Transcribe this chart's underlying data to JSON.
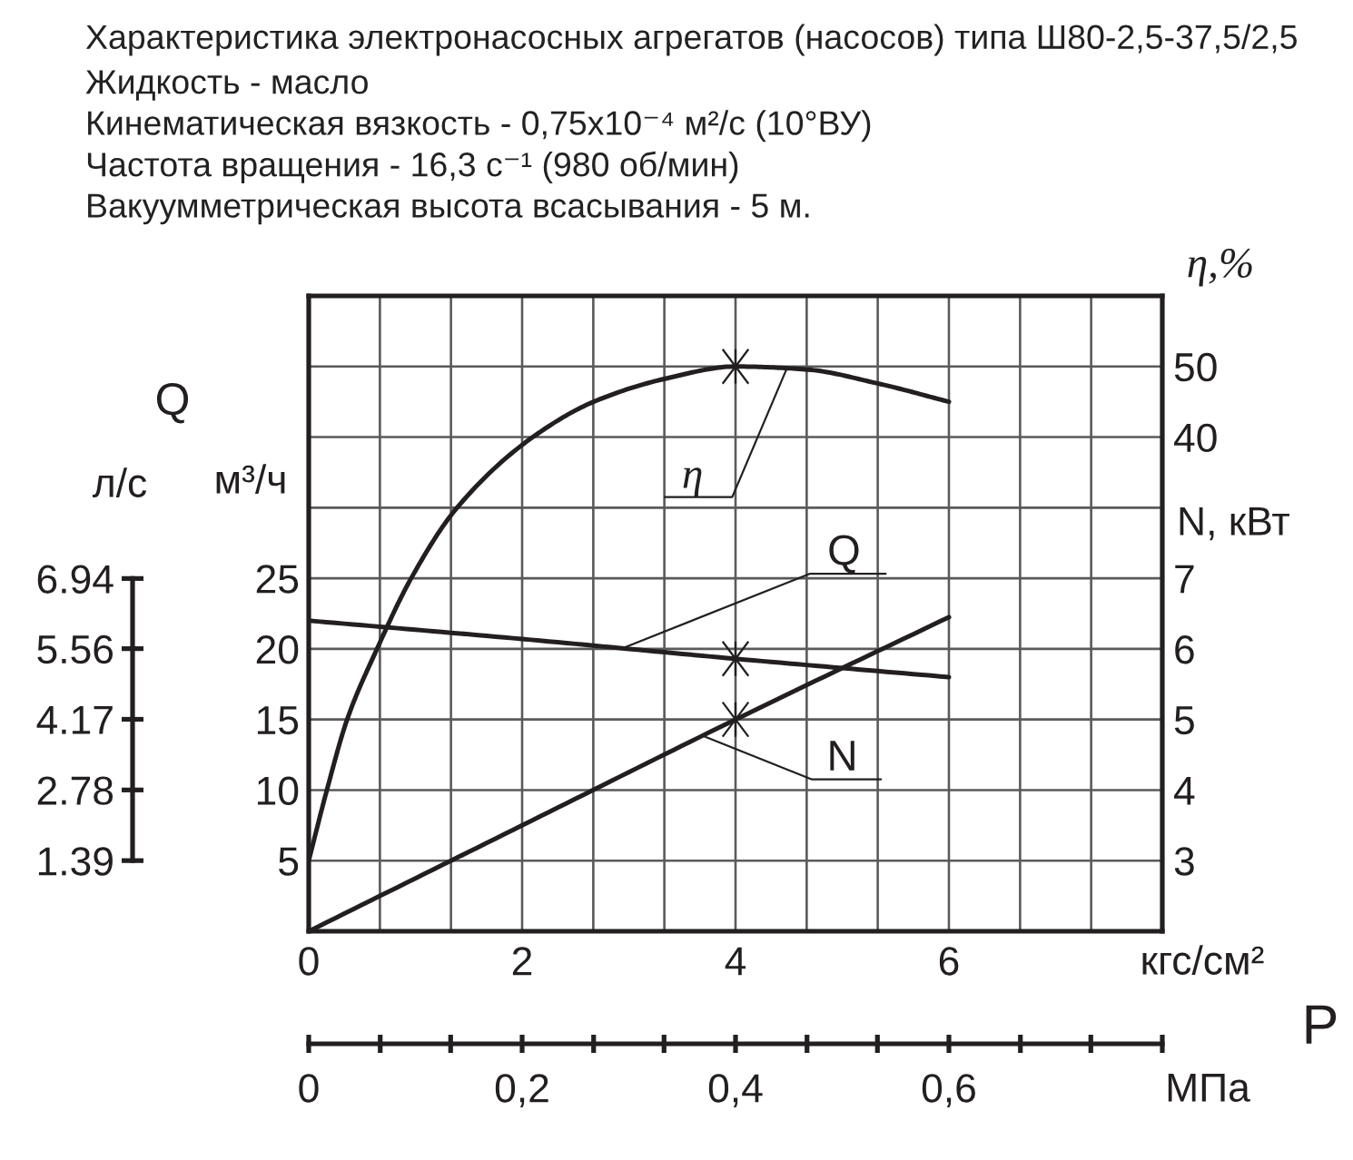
{
  "chart_data": [
    {
      "type": "line",
      "title": "Характеристика электронасосных агрегатов (насосов) типа Ш80-2,5-37,5/2,5",
      "subtitle": "Жидкость - масло\nКинематическая вязкость - 0,75x10⁻⁴ м²/с (10°ВУ)\nЧастота вращения - 16,3 с⁻¹ (980 об/мин)\nВакуумметрическая высота всасывания - 5 м.",
      "xlabel": "кгс/см²",
      "x2label": "МПа",
      "ylabel": "м³/ч",
      "y2label": "л/с",
      "y3label": "N, кВт",
      "annotations": [
        "Q",
        "P"
      ],
      "xlim": [
        0,
        8
      ],
      "xticks": [
        0,
        {
          "value": 0.667,
          "label": null
        },
        {
          "value": 1.333,
          "label": null
        },
        2,
        {
          "value": 2.667,
          "label": null
        },
        {
          "value": 3.333,
          "label": null
        },
        4,
        {
          "value": 4.667,
          "label": null
        },
        {
          "value": 5.333,
          "label": null
        },
        6,
        {
          "value": 6.667,
          "label": null
        },
        {
          "value": 7.333,
          "label": null
        }
      ],
      "x2lim": [
        0,
        0.8
      ],
      "x2ticks": [
        0,
        {
          "value": 0.067,
          "label": null
        },
        {
          "value": 0.133,
          "label": null
        },
        {
          "value": 0.2,
          "label": "0,2"
        },
        {
          "value": 0.267,
          "label": null
        },
        {
          "value": 0.333,
          "label": null
        },
        {
          "value": 0.4,
          "label": "0,4"
        },
        {
          "value": 0.467,
          "label": null
        },
        {
          "value": 0.533,
          "label": null
        },
        {
          "value": 0.6,
          "label": "0,6"
        },
        {
          "value": 0.667,
          "label": null
        },
        {
          "value": 0.733,
          "label": null
        },
        {
          "value": 0.8,
          "label": null
        }
      ],
      "ylim": [
        0,
        45
      ],
      "yticks": [
        5,
        10,
        15,
        20,
        25,
        {
          "value": 30,
          "label": null
        },
        {
          "value": 35,
          "label": null
        },
        {
          "value": 40,
          "label": null
        }
      ],
      "y2lim": [
        0,
        12.5
      ],
      "y2ticks": [
        1.39,
        2.78,
        4.17,
        5.56,
        6.94
      ],
      "y3lim": [
        2,
        11
      ],
      "y3ticks": [
        3,
        4,
        5,
        6,
        7
      ],
      "grid": true,
      "series": [
        {
          "name": "Q",
          "color": "#231f20",
          "axis": "y",
          "x": [
            0,
            2,
            4,
            6
          ],
          "values": [
            22,
            20.7,
            19.3,
            18
          ]
        },
        {
          "name": "N",
          "color": "#231f20",
          "axis": "y3",
          "x": [
            0,
            2,
            4,
            6
          ],
          "values": [
            2.0,
            3.5,
            5.0,
            6.45
          ]
        },
        {
          "type": "scatter",
          "marker": "cross",
          "color": "#231f20",
          "axis": "y",
          "x": [
            4
          ],
          "values": [
            19.3
          ]
        },
        {
          "type": "scatter",
          "marker": "cross",
          "color": "#231f20",
          "axis": "y3",
          "x": [
            4
          ],
          "values": [
            5.0
          ]
        }
      ]
    },
    {
      "type": "line",
      "ylabel": "η,%",
      "xlim": [
        0,
        8
      ],
      "ylim": [
        -30,
        60
      ],
      "yticks": [
        40,
        50
      ],
      "tick_labels": "y",
      "series": [
        {
          "name": "η",
          "color": "#231f20",
          "x": [
            0,
            0.17,
            0.36,
            0.64,
            0.96,
            1.39,
            2.1,
            2.67,
            3.35,
            4.0,
            4.65,
            5.36,
            6.0
          ],
          "values": [
            -20,
            -10,
            0,
            10,
            20,
            30,
            40,
            45,
            48.3,
            50,
            49.6,
            47.5,
            45
          ]
        },
        {
          "type": "scatter",
          "marker": "cross",
          "color": "#231f20",
          "x": [
            4
          ],
          "values": [
            50
          ]
        }
      ]
    }
  ]
}
